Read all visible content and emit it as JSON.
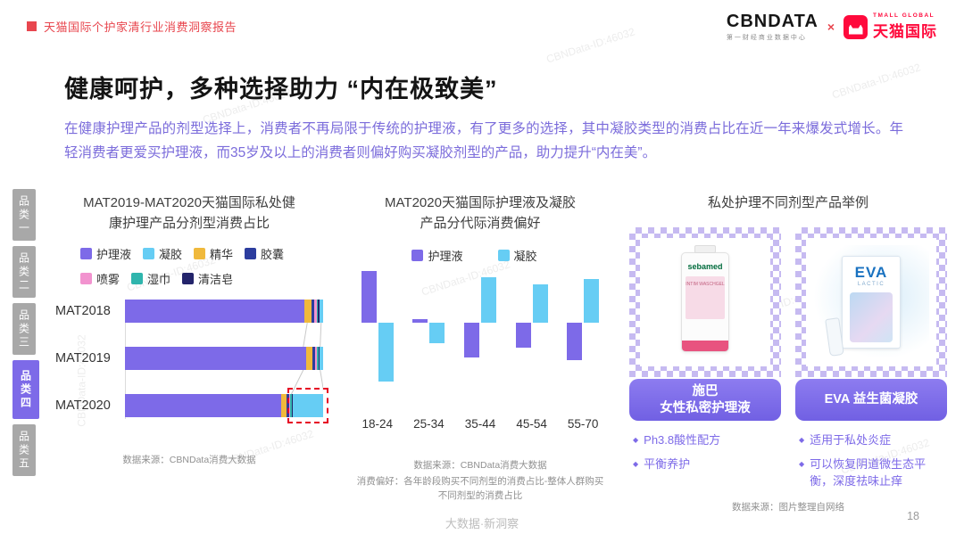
{
  "header": {
    "doc_title": "天猫国际个护家清行业消费洞察报告",
    "cbndata_logo": "CBNDATA",
    "cbndata_sub": "第一财经商业数据中心",
    "logo_multiply": "×",
    "tmall_en": "TMALL GLOBAL",
    "tmall_cn": "天猫国际"
  },
  "sidebar": {
    "items": [
      {
        "label": "品类一",
        "active": false
      },
      {
        "label": "品类二",
        "active": false
      },
      {
        "label": "品类三",
        "active": false
      },
      {
        "label": "品类四",
        "active": true
      },
      {
        "label": "品类五",
        "active": false
      }
    ]
  },
  "main": {
    "title": "健康呵护，多种选择助力 “内在极致美”",
    "intro": "在健康护理产品的剂型选择上，消费者不再局限于传统的护理液，有了更多的选择，其中凝胶类型的消费占比在近一年来爆发式增长。年轻消费者更爱买护理液，而35岁及以上的消费者则偏好购买凝胶剂型的产品，助力提升“内在美”。"
  },
  "products": {
    "title": "私处护理不同剂型产品举例",
    "source": "数据来源：图片整理自网络",
    "cards": [
      {
        "brand": "sebamed",
        "brand_sub": "INTIM WASCHGEL",
        "label_line1": "施巴",
        "label_line2": "女性私密护理液",
        "bullets": [
          "Ph3.8酸性配方",
          "平衡养护"
        ]
      },
      {
        "brand": "EVA",
        "brand_sub": "LACTIC",
        "label_line1": "EVA 益生菌凝胶",
        "label_line2": "",
        "bullets": [
          "适用于私处炎症",
          "可以恢复阴道微生态平衡，深度祛味止痒"
        ]
      }
    ]
  },
  "footer": {
    "page_number": "18",
    "watermark": "CBNData-ID:46032",
    "slogan": "大数据·新洞察"
  },
  "chart_data": [
    {
      "type": "bar",
      "orientation": "horizontal-stacked",
      "title": "MAT2019-MAT2020天猫国际私处健康护理产品分剂型消费占比",
      "categories": [
        "MAT2018",
        "MAT2019",
        "MAT2020"
      ],
      "series": [
        {
          "name": "护理液",
          "color": "#7d6ae8",
          "values": [
            90.5,
            91.5,
            79
          ]
        },
        {
          "name": "凝胶",
          "color": "#66cdf4",
          "values": [
            1.7,
            1.7,
            15.4
          ]
        },
        {
          "name": "精华",
          "color": "#f0b93c",
          "values": [
            3.5,
            3,
            2.5
          ]
        },
        {
          "name": "胶囊",
          "color": "#2c3d9e",
          "values": [
            1.5,
            1.5,
            1.2
          ]
        },
        {
          "name": "喷雾",
          "color": "#f293cf",
          "values": [
            1.2,
            1,
            0.8
          ]
        },
        {
          "name": "湿巾",
          "color": "#2fb5ad",
          "values": [
            0.8,
            0.7,
            0.6
          ]
        },
        {
          "name": "清洁皂",
          "color": "#23246b",
          "values": [
            0.8,
            0.6,
            0.5
          ]
        }
      ],
      "stack_order": [
        "护理液",
        "精华",
        "胶囊",
        "喷雾",
        "湿巾",
        "清洁皂",
        "凝胶"
      ],
      "highlight": {
        "category": "MAT2020",
        "series": "凝胶",
        "style": "red-dashed-box",
        "color": "#e60023"
      },
      "xlim": [
        0,
        100
      ],
      "unit": "%",
      "source": "数据来源：CBNData消费大数据"
    },
    {
      "type": "bar",
      "orientation": "vertical-diverging",
      "title": "MAT2020天猫国际护理液及凝胶产品分代际消费偏好",
      "categories": [
        "18-24",
        "25-34",
        "35-44",
        "45-54",
        "55-70"
      ],
      "series": [
        {
          "name": "护理液",
          "color": "#7d6ae8",
          "values": [
            6.4,
            0.4,
            -4.4,
            -3.2,
            -4.7
          ]
        },
        {
          "name": "凝胶",
          "color": "#66cdf4",
          "values": [
            -7.4,
            -2.6,
            5.6,
            4.7,
            5.4
          ]
        }
      ],
      "unit": "偏好指数(估算)",
      "source": "数据来源：CBNData消费大数据",
      "note": "消费偏好：各年龄段购买不同剂型的消费占比-整体人群购买不同剂型的消费占比"
    }
  ]
}
